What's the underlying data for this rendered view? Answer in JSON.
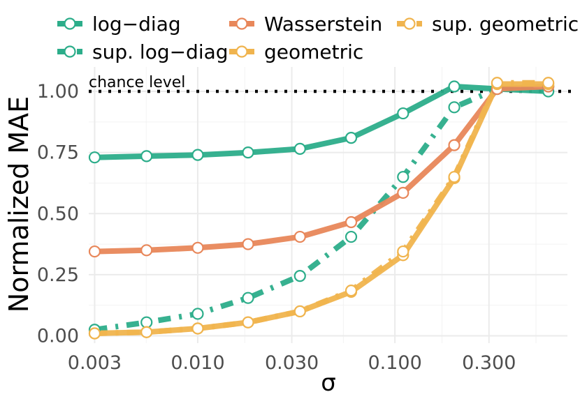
{
  "chart_data": {
    "type": "line",
    "xlabel": "σ",
    "ylabel": "Normalized MAE",
    "x_scale": "log",
    "x": [
      0.003,
      0.0055,
      0.01,
      0.018,
      0.033,
      0.06,
      0.11,
      0.2,
      0.33,
      0.6
    ],
    "xticks": [
      {
        "value": 0.003,
        "label": "0.003"
      },
      {
        "value": 0.01,
        "label": "0.010"
      },
      {
        "value": 0.03,
        "label": "0.030"
      },
      {
        "value": 0.1,
        "label": "0.100"
      },
      {
        "value": 0.3,
        "label": "0.300"
      }
    ],
    "yticks": [
      {
        "value": 0,
        "label": "0.00"
      },
      {
        "value": 0.25,
        "label": "0.25"
      },
      {
        "value": 0.5,
        "label": "0.50"
      },
      {
        "value": 0.75,
        "label": "0.75"
      },
      {
        "value": 1,
        "label": "1.00"
      }
    ],
    "ylim": [
      -0.03,
      1.1
    ],
    "grid": true,
    "legend_position": "top",
    "reference_line": {
      "y": 1.0,
      "label": "chance level",
      "color": "#000000",
      "style": "dotted"
    },
    "series": [
      {
        "name": "log−diag",
        "color": "#2CAD8A",
        "dash": "solid",
        "values": [
          0.73,
          0.735,
          0.74,
          0.75,
          0.765,
          0.81,
          0.91,
          1.02,
          1.01,
          1.0
        ]
      },
      {
        "name": "sup. log−diag",
        "color": "#2CAD8A",
        "dash": "dashdot",
        "values": [
          0.025,
          0.055,
          0.09,
          0.155,
          0.245,
          0.405,
          0.65,
          0.935,
          1.01,
          1.02
        ]
      },
      {
        "name": "Wasserstein",
        "color": "#E8875A",
        "dash": "solid",
        "values": [
          0.345,
          0.35,
          0.36,
          0.375,
          0.405,
          0.465,
          0.585,
          0.78,
          1.01,
          1.02
        ]
      },
      {
        "name": "geometric",
        "color": "#F0B44E",
        "dash": "solid",
        "values": [
          0.01,
          0.015,
          0.03,
          0.055,
          0.1,
          0.18,
          0.33,
          0.645,
          1.03,
          1.03
        ]
      },
      {
        "name": "sup. geometric",
        "color": "#F0B44E",
        "dash": "dashdot",
        "values": [
          0.01,
          0.015,
          0.03,
          0.055,
          0.1,
          0.185,
          0.345,
          0.65,
          1.035,
          1.035
        ]
      }
    ],
    "legend_order": [
      "log−diag",
      "sup. log−diag",
      "Wasserstein",
      "geometric",
      "sup. geometric"
    ]
  }
}
